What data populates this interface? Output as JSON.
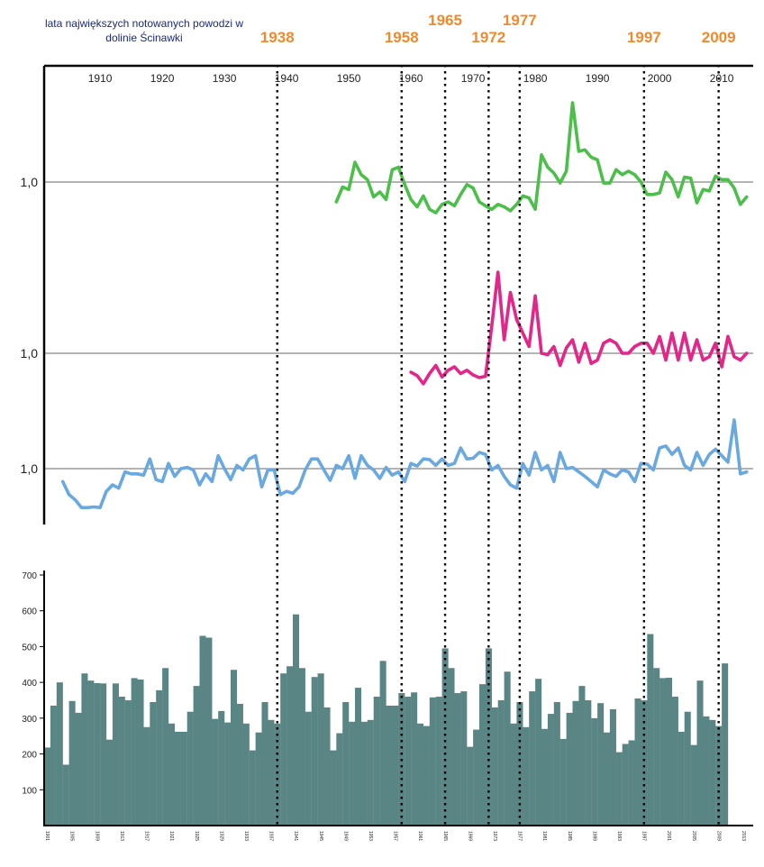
{
  "chart_data": {
    "type": "line",
    "legend_note": "lata największych notowanych powodzi w dolinie Ścinawki",
    "flood_years": [
      1938,
      1958,
      1965,
      1972,
      1977,
      1997,
      2009
    ],
    "decade_labels": [
      1910,
      1920,
      1930,
      1940,
      1950,
      1960,
      1970,
      1980,
      1990,
      2000,
      2010
    ],
    "reference_label": "1,0",
    "x_range": [
      1901,
      2013
    ],
    "colors": {
      "green": "#4cbf4a",
      "magenta": "#e3268a",
      "blue": "#6aa8e0",
      "bars": "#5a8585",
      "flood_labels": "#f08a2c"
    },
    "series": [
      {
        "name": "green",
        "start_year": 1948,
        "relative_values": [
          0.6,
          0.9,
          0.85,
          1.4,
          1.15,
          1.05,
          0.7,
          0.8,
          0.65,
          1.25,
          1.3,
          0.95,
          0.65,
          0.5,
          0.72,
          0.45,
          0.38,
          0.55,
          0.6,
          0.52,
          0.75,
          0.95,
          0.88,
          0.6,
          0.52,
          0.45,
          0.55,
          0.5,
          0.42,
          0.55,
          0.72,
          0.68,
          0.45,
          1.55,
          1.3,
          1.18,
          0.98,
          1.22,
          2.6,
          1.62,
          1.65,
          1.5,
          1.45,
          0.98,
          0.98,
          1.25,
          1.15,
          1.22,
          1.15,
          1.0,
          0.75,
          0.75,
          0.78,
          1.2,
          1.05,
          0.7,
          1.1,
          1.08,
          0.58,
          0.85,
          0.82,
          1.12,
          1.05,
          1.05,
          0.88,
          0.55,
          0.7
        ]
      },
      {
        "name": "magenta",
        "start_year": 1960,
        "relative_values": [
          0.72,
          0.67,
          0.55,
          0.7,
          0.82,
          0.65,
          0.75,
          0.8,
          0.7,
          0.75,
          0.68,
          0.64,
          0.66,
          1.4,
          2.2,
          1.2,
          1.9,
          1.5,
          1.3,
          1.1,
          1.85,
          1.0,
          0.98,
          1.1,
          0.82,
          1.08,
          1.2,
          0.87,
          1.15,
          0.85,
          0.9,
          1.15,
          1.2,
          1.15,
          1.0,
          1.0,
          1.1,
          1.15,
          1.15,
          1.0,
          1.25,
          0.9,
          1.3,
          0.9,
          1.3,
          0.9,
          1.2,
          0.9,
          0.95,
          1.15,
          0.8,
          1.25,
          0.95,
          0.9,
          1.0
        ]
      },
      {
        "name": "blue",
        "start_year": 1904,
        "relative_values": [
          0.8,
          0.6,
          0.52,
          0.4,
          0.4,
          0.41,
          0.4,
          0.65,
          0.75,
          0.7,
          0.95,
          0.92,
          0.92,
          0.9,
          1.15,
          0.83,
          0.8,
          1.08,
          0.88,
          1.0,
          1.02,
          0.98,
          0.75,
          0.92,
          0.8,
          1.2,
          1.0,
          0.83,
          1.05,
          0.98,
          1.15,
          1.2,
          0.72,
          0.98,
          0.98,
          0.6,
          0.65,
          0.62,
          0.72,
          0.98,
          1.15,
          1.15,
          0.98,
          0.82,
          1.05,
          1.0,
          1.2,
          0.85,
          1.2,
          1.05,
          0.98,
          0.85,
          1.02,
          0.9,
          0.95,
          0.8,
          1.08,
          1.04,
          1.15,
          1.14,
          1.05,
          1.15,
          1.05,
          1.08,
          1.32,
          1.15,
          1.16,
          1.25,
          1.22,
          0.98,
          1.05,
          0.88,
          0.75,
          0.7,
          1.08,
          0.9,
          1.25,
          0.98,
          1.05,
          0.8,
          1.25,
          1.0,
          1.02,
          0.95,
          0.88,
          0.8,
          0.72,
          0.98,
          0.92,
          0.88,
          0.98,
          0.95,
          0.8,
          1.08,
          1.07,
          0.98,
          1.32,
          1.35,
          1.22,
          1.32,
          1.05,
          0.98,
          1.25,
          1.05,
          1.22,
          1.3,
          1.2,
          1.1,
          1.75,
          0.92,
          0.95
        ]
      }
    ],
    "bars": {
      "ylim": [
        0,
        700
      ],
      "y_ticks": [
        100,
        200,
        300,
        400,
        500,
        600,
        700
      ],
      "year_ticks": [
        1901,
        1905,
        1909,
        1913,
        1917,
        1921,
        1925,
        1929,
        1933,
        1937,
        1941,
        1945,
        1949,
        1953,
        1957,
        1961,
        1965,
        1969,
        1973,
        1977,
        1981,
        1985,
        1989,
        1993,
        1997,
        2001,
        2005,
        2009,
        2013
      ],
      "start_year": 1901,
      "values": [
        218,
        335,
        400,
        170,
        348,
        315,
        425,
        405,
        398,
        397,
        240,
        397,
        360,
        350,
        412,
        408,
        275,
        345,
        378,
        440,
        285,
        262,
        262,
        318,
        390,
        530,
        525,
        298,
        320,
        288,
        435,
        340,
        285,
        210,
        260,
        345,
        295,
        285,
        425,
        445,
        590,
        440,
        318,
        415,
        425,
        330,
        210,
        258,
        345,
        290,
        385,
        290,
        295,
        360,
        460,
        335,
        335,
        370,
        360,
        372,
        285,
        278,
        358,
        360,
        495,
        440,
        370,
        375,
        220,
        268,
        395,
        495,
        330,
        350,
        430,
        285,
        345,
        275,
        375,
        410,
        270,
        312,
        345,
        242,
        315,
        348,
        390,
        350,
        300,
        342,
        260,
        325,
        205,
        228,
        238,
        355,
        350,
        535,
        440,
        412,
        413,
        360,
        262,
        318,
        225,
        405,
        305,
        295,
        278,
        453
      ]
    }
  }
}
